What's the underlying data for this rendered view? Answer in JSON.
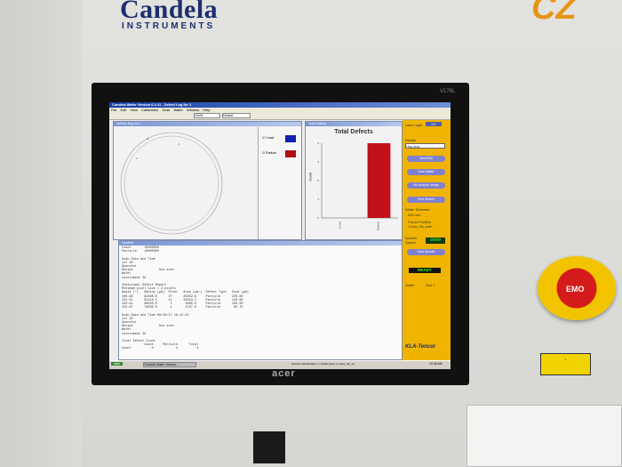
{
  "machine": {
    "brand": "Candela",
    "brand_sub": "INSTRUMENTS",
    "corner_logo": "CZ",
    "monitor_model": "V176L",
    "monitor_brand": "acer",
    "emo_label": "EMO"
  },
  "app": {
    "title": "Candela Wafer Version 6.4.11 - Defect Log for 1",
    "menu": [
      "File",
      "Edit",
      "View",
      "Calibration",
      "Tools",
      "Wafer",
      "Window",
      "Help"
    ],
    "toolbar": {
      "combo1": "10001",
      "combo2": "Default"
    },
    "defect_map": {
      "title": "Defects Map for 1",
      "legend": [
        {
          "label": "Coast",
          "color": "#1020b0"
        },
        {
          "label": "Particle",
          "color": "#b01010"
        }
      ]
    },
    "total_defects": {
      "title": "Total Defects",
      "window_title": "Total Defects",
      "chart_data": {
        "type": "bar",
        "title": "Total Defects",
        "ylabel": "Count",
        "categories": [
          "Coast",
          "Particle"
        ],
        "values": [
          0,
          4
        ],
        "ylim": [
          0,
          4
        ]
      }
    },
    "log": {
      "window_title": "Candela",
      "lines": [
        "Coast       10000000",
        "Particle    10000000",
        "",
        "Scan Date and Time",
        "Lot ID",
        "Operator",
        "Recipe              Hsu-test",
        "Wafer",
        "Instrument ID",
        "",
        "Individual Defect Report",
        "Minimum pixel size = 3 pixels",
        "Angle (°)   Radius (µm)  Pixel   Area (µm²)  Defect Type   Size (µm)",
        "100.96      92485.0      27      26352.6     Particle      220.60",
        "131.51      91115.5      11      15584.1     Particle      140.60",
        "120.91      80035.0       1       2060.0     Particle      100.00",
        "125.07      72030.0       1       4707.0     Particle       95.75",
        "",
        "Scan Date and Time 08/18/17 16:12:44",
        "Lot ID",
        "Operator",
        "Recipe              Hsu-test",
        "Wafer",
        "Instrument ID",
        "",
        "Total Defect Count",
        "            Coast     Particle      Total",
        "Count           0            4          4"
      ]
    },
    "side_panel": {
      "user_label": "User Login",
      "user_value": "CZ",
      "recipe_label": "Recipe",
      "recipe_value": "Hsu-test",
      "buttons": [
        "View/Edit",
        "Scan Wafer",
        "Re-Analyze Image",
        "Print Screen",
        "Start Spindle"
      ],
      "wafer_diameter_label": "Wafer Diameter",
      "wafer_diameter": "200 mm",
      "focus_label": "Focus Position",
      "focus_value": "1.0mm_Sio_drain",
      "spindle_label": "Spindle Speed",
      "spindle_value": "0000",
      "status": "READY",
      "wafer_label": "Wafer",
      "slot_label": "Slot 7",
      "vendor": "KLA-Tencor"
    },
    "taskbar": {
      "start": "start",
      "task": "Candela Wafer Version...",
      "status": "Session Identification 1 | Status (per) 1 | Axes_idx_ok",
      "clock": "10:26 AM"
    }
  }
}
